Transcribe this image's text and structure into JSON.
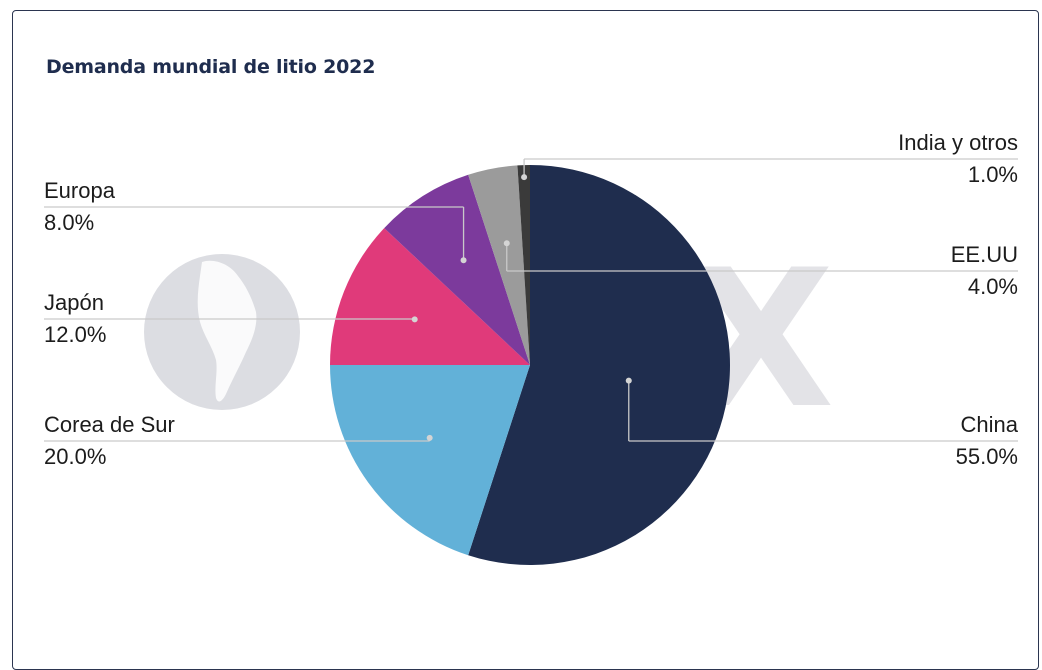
{
  "title": "Demanda mundial de litio 2022",
  "watermark": {
    "text": "CIEX",
    "globe_icon": "globe-americas-icon"
  },
  "chart_data": {
    "type": "pie",
    "title": "Demanda mundial de litio 2022",
    "unit": "%",
    "start": "top, clockwise",
    "slices": [
      {
        "label": "China",
        "value": 55.0,
        "display": "55.0%",
        "color": "#1f2d4e",
        "side": "right"
      },
      {
        "label": "Corea de Sur",
        "value": 20.0,
        "display": "20.0%",
        "color": "#62b1d8",
        "side": "left"
      },
      {
        "label": "Japón",
        "value": 12.0,
        "display": "12.0%",
        "color": "#e03a7a",
        "side": "left"
      },
      {
        "label": "Europa",
        "value": 8.0,
        "display": "8.0%",
        "color": "#7c3a9c",
        "side": "left"
      },
      {
        "label": "EE.UU",
        "value": 4.0,
        "display": "4.0%",
        "color": "#9b9b9b",
        "side": "right"
      },
      {
        "label": "India y otros",
        "value": 1.0,
        "display": "1.0%",
        "color": "#3a3a3a",
        "side": "right"
      }
    ]
  }
}
